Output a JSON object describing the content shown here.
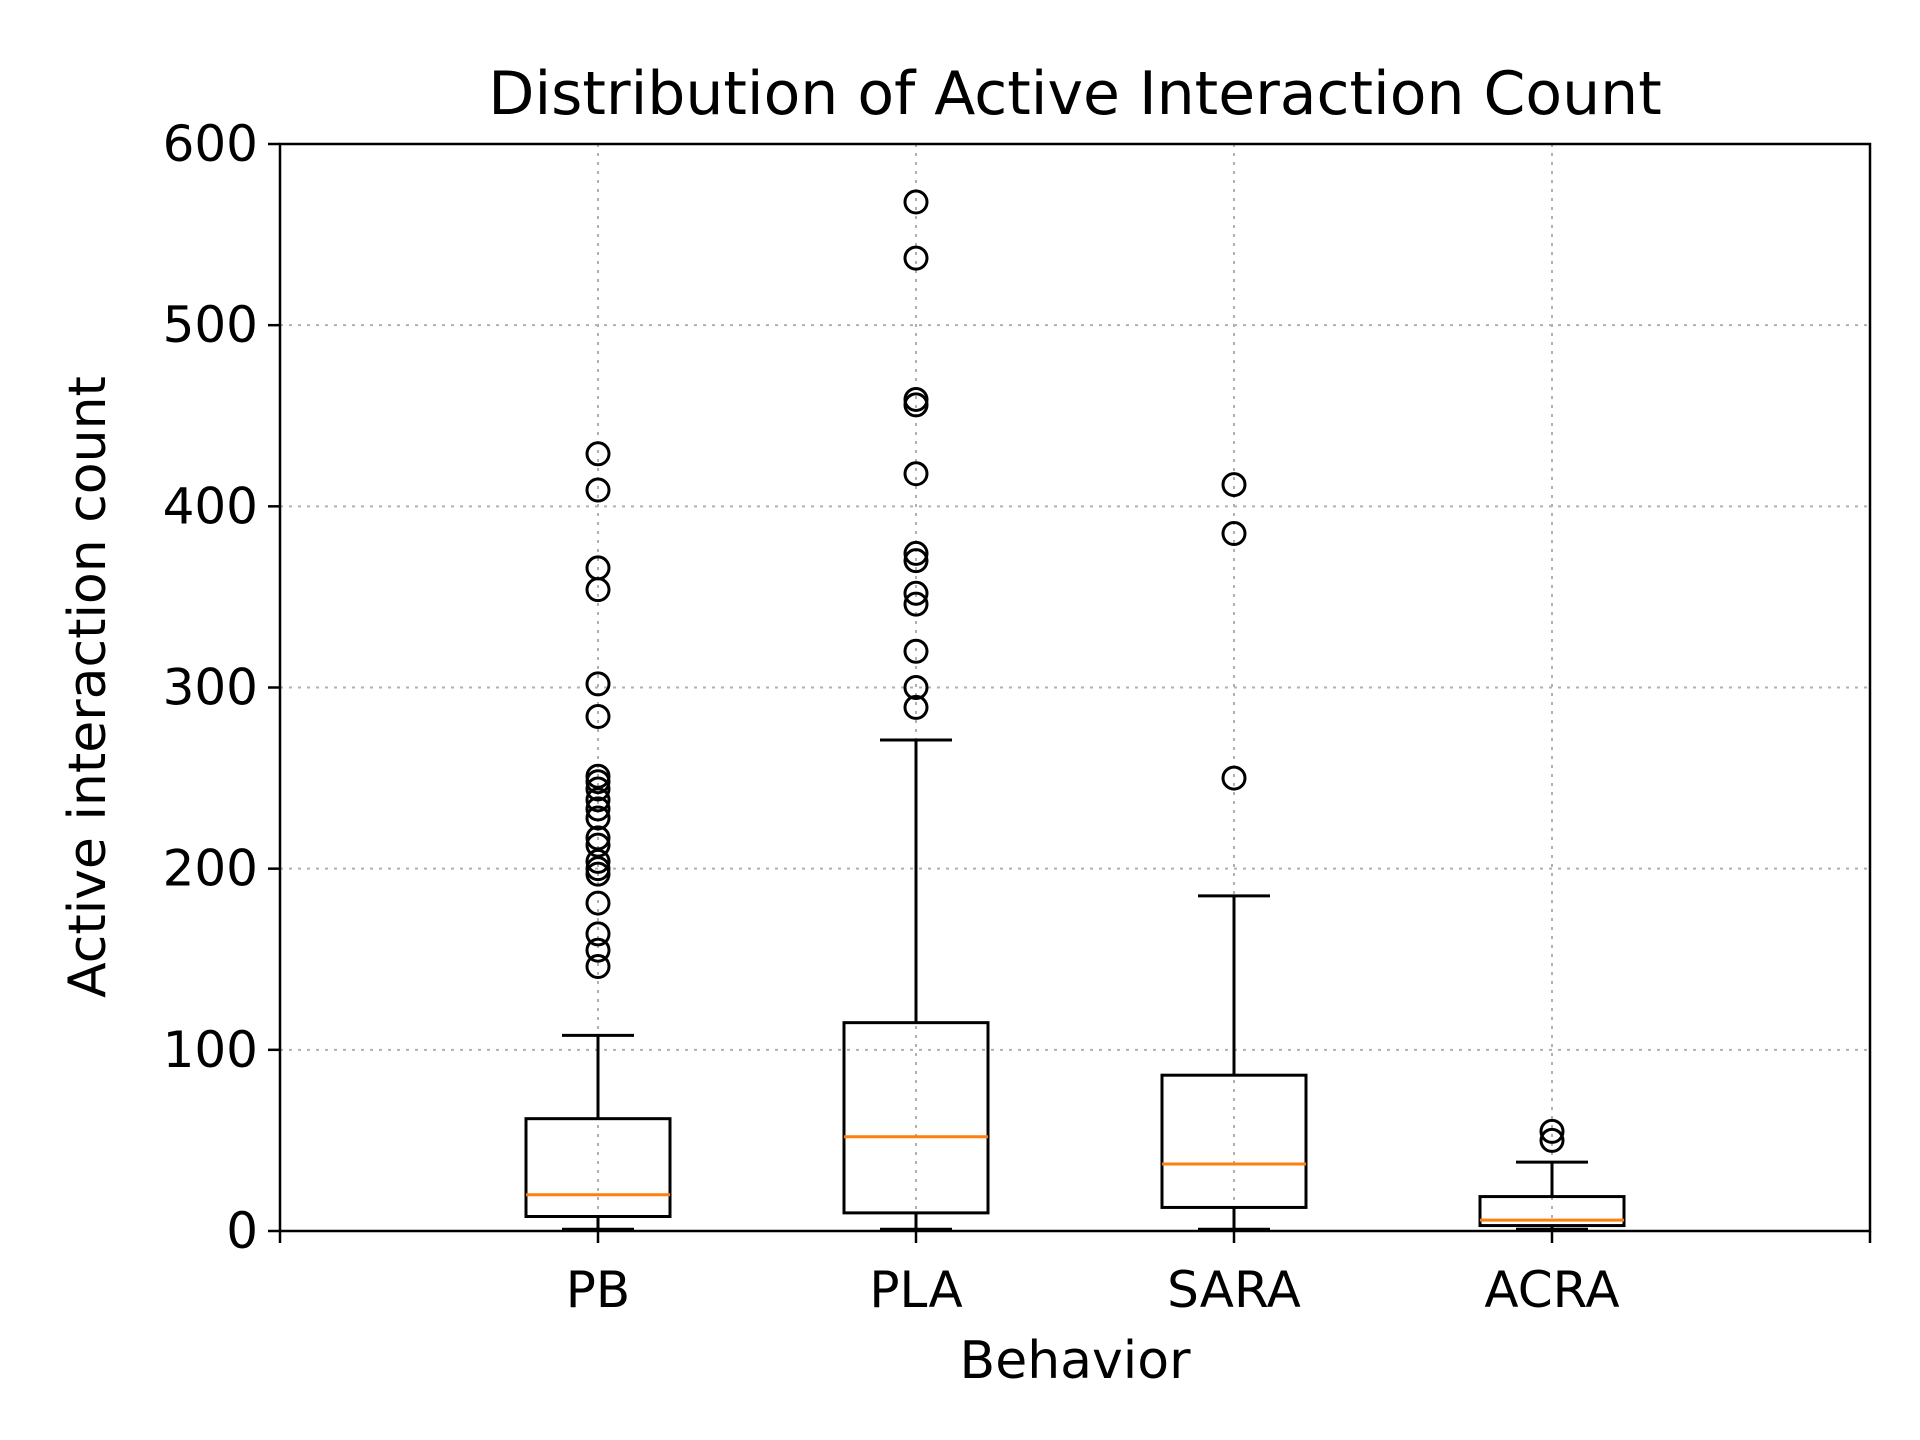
{
  "chart_data": {
    "type": "box",
    "title": "Distribution of Active Interaction Count",
    "xlabel": "Behavior",
    "ylabel": "Active interaction count",
    "ylim": [
      0,
      600
    ],
    "yticks": [
      0,
      100,
      200,
      300,
      400,
      500,
      600
    ],
    "grid": true,
    "colors": {
      "box": "#000000",
      "median": "#ff7f0e",
      "grid": "#b0b0b0"
    },
    "categories": [
      "PB",
      "PLA",
      "SARA",
      "ACRA"
    ],
    "boxes": [
      {
        "name": "PB",
        "whisker_low": 1,
        "q1": 8,
        "median": 20,
        "q3": 62,
        "whisker_high": 108,
        "fliers": [
          146,
          155,
          164,
          181,
          197,
          200,
          204,
          213,
          217,
          228,
          233,
          238,
          244,
          248,
          251,
          284,
          302,
          354,
          366,
          409,
          429
        ]
      },
      {
        "name": "PLA",
        "whisker_low": 1,
        "q1": 10,
        "median": 52,
        "q3": 115,
        "whisker_high": 271,
        "fliers": [
          289,
          300,
          320,
          346,
          352,
          370,
          374,
          418,
          456,
          459,
          537,
          568
        ]
      },
      {
        "name": "SARA",
        "whisker_low": 1,
        "q1": 13,
        "median": 37,
        "q3": 86,
        "whisker_high": 185,
        "fliers": [
          250,
          385,
          412
        ]
      },
      {
        "name": "ACRA",
        "whisker_low": 1,
        "q1": 3,
        "median": 6,
        "q3": 19,
        "whisker_high": 38,
        "fliers": [
          50,
          55
        ]
      }
    ]
  }
}
